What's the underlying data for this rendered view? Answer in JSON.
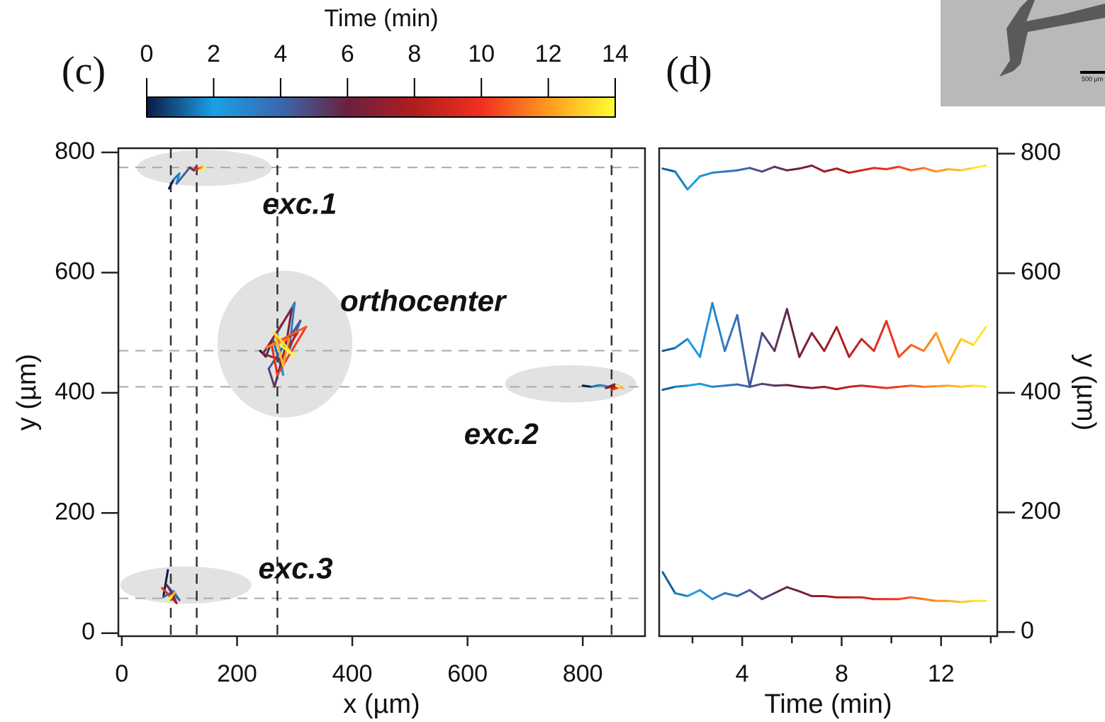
{
  "panel_labels": [
    "(c)",
    "(d)"
  ],
  "colorbar": {
    "title": "Time (min)",
    "lim": [
      0,
      14
    ],
    "ticks": [
      0,
      2,
      4,
      6,
      8,
      10,
      12,
      14
    ],
    "colors": [
      "#0b1a45",
      "#1aa0e6",
      "#3a68b0",
      "#6a2040",
      "#b01e1e",
      "#f03020",
      "#ff9a20",
      "#ffff30"
    ]
  },
  "inset": {
    "scale_label": "500 µm"
  },
  "chart_data": [
    {
      "type": "line",
      "xlabel": "x (µm)",
      "ylabel": "y (µm)",
      "xlim": [
        -6,
        908
      ],
      "ylim": [
        -5,
        807
      ],
      "xticks": [
        0,
        200,
        400,
        600,
        800
      ],
      "yticks": [
        0,
        200,
        400,
        600,
        800
      ],
      "vlines": [
        85,
        130,
        270,
        850
      ],
      "hlines": [
        775,
        470,
        410,
        58
      ],
      "vline_color": "#333333",
      "hline_color": "#aaaaaa",
      "region_color": "#e2e2e2",
      "regions": [
        {
          "cx": 143,
          "cy": 774,
          "rx": 117,
          "ry": 30
        },
        {
          "cx": 283,
          "cy": 481,
          "rx": 117,
          "ry": 122
        },
        {
          "cx": 779,
          "cy": 415,
          "rx": 114,
          "ry": 31
        },
        {
          "cx": 111,
          "cy": 80,
          "rx": 114,
          "ry": 31
        }
      ],
      "annotations": [
        {
          "text": "exc.1",
          "x": 244,
          "y": 711
        },
        {
          "text": "orthocenter",
          "x": 379,
          "y": 549
        },
        {
          "text": "exc.2",
          "x": 594,
          "y": 328
        },
        {
          "text": "exc.3",
          "x": 237,
          "y": 104
        }
      ],
      "series": [
        {
          "x": [
            82,
            90,
            100,
            95,
            118,
            125,
            130,
            128,
            135,
            140,
            138,
            145
          ],
          "values": [
            740,
            755,
            765,
            748,
            775,
            770,
            778,
            772,
            774,
            776,
            770,
            775
          ]
        },
        {
          "x": [
            240,
            250,
            262,
            280,
            270,
            300,
            290,
            310,
            255,
            265,
            285,
            295,
            245,
            275,
            305,
            260,
            270,
            320,
            250,
            290,
            280,
            265,
            300,
            275
          ],
          "values": [
            470,
            460,
            490,
            430,
            500,
            550,
            470,
            520,
            440,
            410,
            480,
            540,
            465,
            455,
            500,
            480,
            430,
            510,
            475,
            490,
            445,
            500,
            460,
            480
          ]
        },
        {
          "x": [
            800,
            815,
            830,
            845,
            855,
            840,
            860,
            850,
            865,
            870,
            858,
            862
          ],
          "values": [
            412,
            410,
            413,
            410,
            414,
            408,
            412,
            405,
            410,
            408,
            412,
            410
          ]
        },
        {
          "x": [
            80,
            72,
            90,
            100,
            78,
            88,
            95,
            70,
            85,
            92,
            82,
            86
          ],
          "values": [
            105,
            60,
            70,
            55,
            80,
            65,
            50,
            75,
            60,
            68,
            55,
            62
          ]
        }
      ]
    },
    {
      "type": "line",
      "xlabel": "Time (min)",
      "ylabel": "y (µm)",
      "yaxis_side": "right",
      "xlim": [
        0.66,
        14.26
      ],
      "ylim": [
        -7,
        809
      ],
      "xticks": [
        4,
        8,
        12
      ],
      "xminorticks": [
        2,
        6,
        10,
        14
      ],
      "yticks": [
        0,
        200,
        400,
        600,
        800
      ],
      "x": [
        0.8,
        1.3,
        1.8,
        2.3,
        2.8,
        3.3,
        3.8,
        4.3,
        4.8,
        5.3,
        5.8,
        6.3,
        6.8,
        7.3,
        7.8,
        8.3,
        8.8,
        9.3,
        9.8,
        10.3,
        10.8,
        11.3,
        11.8,
        12.3,
        12.8,
        13.3,
        13.8
      ],
      "series": [
        {
          "values": [
            775,
            770,
            740,
            762,
            768,
            770,
            772,
            776,
            770,
            778,
            772,
            775,
            780,
            770,
            775,
            768,
            772,
            776,
            774,
            778,
            772,
            776,
            770,
            774,
            772,
            776,
            780
          ]
        },
        {
          "values": [
            470,
            475,
            490,
            460,
            550,
            470,
            530,
            410,
            500,
            470,
            540,
            460,
            500,
            470,
            510,
            460,
            490,
            470,
            520,
            460,
            480,
            470,
            500,
            450,
            490,
            480,
            510
          ]
        },
        {
          "values": [
            405,
            410,
            412,
            415,
            410,
            412,
            414,
            410,
            415,
            412,
            413,
            410,
            408,
            410,
            406,
            410,
            412,
            410,
            408,
            410,
            412,
            410,
            411,
            412,
            410,
            412,
            410
          ]
        },
        {
          "values": [
            100,
            65,
            60,
            70,
            55,
            65,
            60,
            70,
            55,
            65,
            75,
            68,
            60,
            60,
            58,
            58,
            58,
            55,
            55,
            55,
            58,
            55,
            52,
            52,
            50,
            52,
            52
          ]
        }
      ]
    }
  ]
}
